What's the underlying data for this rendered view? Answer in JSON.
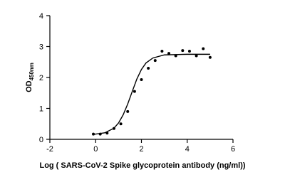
{
  "chart_data": {
    "type": "scatter",
    "xlabel": "Log ( SARS-CoV-2 Spike glycoprotein antibody (ng/ml))",
    "ylabel": {
      "text": "OD",
      "subscript": "450nm"
    },
    "xlim": [
      -2,
      6
    ],
    "xticks": [
      -2,
      0,
      2,
      4,
      6
    ],
    "ylim": [
      0,
      4
    ],
    "yticks": [
      0,
      1,
      2,
      3,
      4
    ],
    "color": "#000000",
    "points": {
      "x": [
        -0.1,
        0.2,
        0.5,
        0.8,
        1.1,
        1.4,
        1.7,
        2.0,
        2.3,
        2.6,
        2.9,
        3.2,
        3.5,
        3.8,
        4.1,
        4.4,
        4.7,
        5.0
      ],
      "y": [
        0.17,
        0.17,
        0.2,
        0.35,
        0.5,
        0.9,
        1.55,
        1.93,
        2.3,
        2.55,
        2.85,
        2.78,
        2.7,
        2.87,
        2.85,
        2.7,
        2.93,
        2.65
      ]
    },
    "curve": {
      "x": [
        -0.1,
        0.4,
        0.8,
        1.0,
        1.2,
        1.4,
        1.6,
        1.8,
        2.0,
        2.2,
        2.5,
        3.0,
        4.0,
        5.0
      ],
      "y": [
        0.16,
        0.21,
        0.36,
        0.53,
        0.79,
        1.14,
        1.55,
        1.95,
        2.26,
        2.47,
        2.63,
        2.73,
        2.75,
        2.75
      ]
    }
  }
}
